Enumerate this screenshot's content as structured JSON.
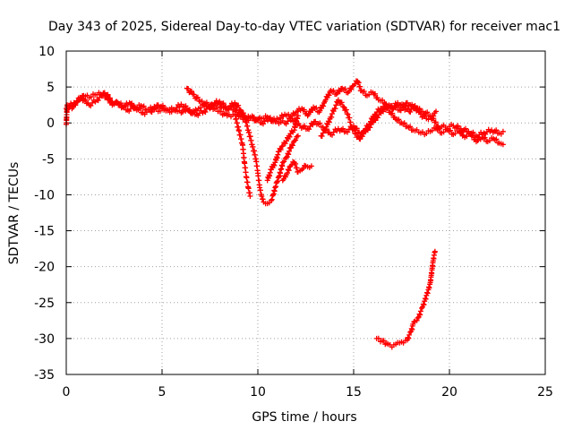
{
  "chart_data": {
    "type": "scatter",
    "title": "Day 343 of 2025, Sidereal Day-to-day VTEC variation (SDTVAR) for receiver mac1",
    "xlabel": "GPS time / hours",
    "ylabel": "SDTVAR / TECUs",
    "xlim": [
      0,
      25
    ],
    "ylim": [
      -35,
      10
    ],
    "xticks": [
      0,
      5,
      10,
      15,
      20,
      25
    ],
    "yticks": [
      10,
      5,
      0,
      -5,
      -10,
      -15,
      -20,
      -25,
      -30,
      -35
    ],
    "xtick_labels": [
      "0",
      "5",
      "10",
      "15",
      "20",
      "25"
    ],
    "ytick_labels": [
      "10",
      "5",
      "0",
      "-5",
      "-10",
      "-15",
      "-20",
      "-25",
      "-30",
      "-35"
    ],
    "grid": true,
    "marker": "+",
    "series": [
      {
        "name": "SDTVAR",
        "color": "#ff0000",
        "tracks": [
          [
            [
              0.0,
              -0.2
            ],
            [
              0.05,
              2.5
            ],
            [
              0.3,
              2.0
            ],
            [
              0.6,
              3.0
            ],
            [
              0.9,
              3.8
            ],
            [
              1.2,
              3.5
            ],
            [
              1.5,
              3.9
            ],
            [
              1.8,
              4.0
            ],
            [
              2.1,
              3.5
            ],
            [
              2.4,
              2.5
            ],
            [
              2.7,
              2.8
            ],
            [
              3.0,
              2.2
            ],
            [
              3.3,
              2.8
            ],
            [
              3.6,
              2.0
            ],
            [
              3.9,
              2.4
            ],
            [
              4.2,
              1.8
            ],
            [
              4.5,
              2.0
            ],
            [
              4.8,
              1.6
            ],
            [
              5.1,
              1.8
            ],
            [
              5.4,
              1.5
            ],
            [
              5.7,
              1.7
            ],
            [
              6.0,
              1.4
            ],
            [
              6.3,
              1.9
            ],
            [
              6.6,
              1.3
            ],
            [
              6.9,
              2.0
            ],
            [
              7.2,
              2.4
            ],
            [
              7.5,
              2.0
            ],
            [
              7.8,
              2.8
            ],
            [
              8.1,
              2.2
            ],
            [
              8.4,
              1.8
            ],
            [
              8.7,
              2.5
            ],
            [
              9.0,
              1.0
            ],
            [
              9.3,
              0.5
            ],
            [
              9.6,
              0.8
            ],
            [
              9.9,
              0.3
            ],
            [
              10.2,
              0.6
            ],
            [
              10.5,
              0.8
            ],
            [
              10.8,
              0.2
            ],
            [
              11.1,
              0.5
            ],
            [
              11.4,
              1.2
            ],
            [
              11.7,
              0.8
            ],
            [
              12.0,
              1.5
            ],
            [
              12.3,
              2.0
            ],
            [
              12.6,
              1.0
            ],
            [
              12.9,
              2.2
            ],
            [
              13.2,
              1.5
            ],
            [
              13.5,
              3.0
            ],
            [
              13.8,
              4.5
            ],
            [
              14.1,
              4.0
            ],
            [
              14.4,
              4.8
            ],
            [
              14.7,
              4.2
            ],
            [
              15.0,
              5.2
            ],
            [
              15.2,
              5.8
            ],
            [
              15.4,
              4.5
            ],
            [
              15.7,
              3.8
            ],
            [
              16.0,
              4.2
            ],
            [
              16.3,
              3.2
            ],
            [
              16.6,
              2.8
            ],
            [
              16.9,
              1.5
            ],
            [
              17.2,
              0.5
            ],
            [
              17.5,
              0.0
            ],
            [
              17.8,
              -0.5
            ],
            [
              18.1,
              -1.0
            ],
            [
              18.4,
              -1.3
            ],
            [
              18.7,
              -1.6
            ],
            [
              19.0,
              -1.2
            ],
            [
              19.3,
              -0.8
            ],
            [
              19.6,
              -1.4
            ],
            [
              19.9,
              -1.0
            ],
            [
              20.2,
              -1.6
            ],
            [
              20.5,
              -1.2
            ],
            [
              20.8,
              -2.0
            ],
            [
              21.1,
              -1.6
            ],
            [
              21.4,
              -2.6
            ],
            [
              21.7,
              -2.0
            ],
            [
              22.0,
              -2.6
            ],
            [
              22.3,
              -2.2
            ],
            [
              22.6,
              -2.8
            ],
            [
              22.8,
              -3.0
            ]
          ],
          [
            [
              0.0,
              2.0
            ],
            [
              0.4,
              2.8
            ],
            [
              0.8,
              3.5
            ],
            [
              1.2,
              2.5
            ],
            [
              1.6,
              3.2
            ],
            [
              2.0,
              4.2
            ],
            [
              2.4,
              3.0
            ],
            [
              2.8,
              2.5
            ],
            [
              3.2,
              1.8
            ],
            [
              3.6,
              2.2
            ],
            [
              4.0,
              1.4
            ],
            [
              4.4,
              1.6
            ],
            [
              4.8,
              2.5
            ],
            [
              5.2,
              2.0
            ],
            [
              5.6,
              1.8
            ],
            [
              6.0,
              2.6
            ],
            [
              6.4,
              1.8
            ],
            [
              6.8,
              1.2
            ],
            [
              7.2,
              1.6
            ],
            [
              7.6,
              2.6
            ],
            [
              8.0,
              3.0
            ],
            [
              8.4,
              2.0
            ],
            [
              8.8,
              2.8
            ],
            [
              9.1,
              1.8
            ],
            [
              9.4,
              0.5
            ],
            [
              9.8,
              0.8
            ],
            [
              10.2,
              0.0
            ],
            [
              10.6,
              0.6
            ],
            [
              11.0,
              0.2
            ],
            [
              11.4,
              0.0
            ],
            [
              11.8,
              0.6
            ],
            [
              12.2,
              -0.4
            ],
            [
              12.6,
              -0.8
            ],
            [
              13.0,
              0.2
            ],
            [
              13.4,
              -0.6
            ],
            [
              13.8,
              -1.6
            ],
            [
              14.2,
              -0.8
            ],
            [
              14.6,
              -1.2
            ],
            [
              15.0,
              -0.4
            ],
            [
              15.4,
              -1.8
            ],
            [
              15.8,
              -0.6
            ],
            [
              16.2,
              0.8
            ],
            [
              16.6,
              2.0
            ],
            [
              17.0,
              2.4
            ],
            [
              17.4,
              1.8
            ],
            [
              17.8,
              2.8
            ],
            [
              18.2,
              2.0
            ],
            [
              18.6,
              1.6
            ],
            [
              19.0,
              1.0
            ],
            [
              19.4,
              -0.4
            ],
            [
              19.8,
              -0.6
            ],
            [
              20.2,
              -0.4
            ],
            [
              20.6,
              -0.8
            ],
            [
              21.0,
              -1.2
            ],
            [
              21.4,
              -1.8
            ],
            [
              21.8,
              -1.4
            ],
            [
              22.2,
              -1.0
            ],
            [
              22.6,
              -1.4
            ],
            [
              22.8,
              -1.2
            ]
          ],
          [
            [
              6.3,
              4.8
            ],
            [
              6.6,
              4.0
            ],
            [
              7.0,
              3.0
            ],
            [
              7.5,
              2.4
            ],
            [
              8.0,
              1.6
            ],
            [
              8.4,
              1.0
            ],
            [
              8.8,
              1.2
            ],
            [
              9.0,
              -1.0
            ],
            [
              9.2,
              -3.0
            ],
            [
              9.3,
              -5.5
            ],
            [
              9.4,
              -7.5
            ],
            [
              9.5,
              -9.0
            ],
            [
              9.6,
              -10.2
            ]
          ],
          [
            [
              8.7,
              1.8
            ],
            [
              9.0,
              1.5
            ],
            [
              9.3,
              1.0
            ],
            [
              9.5,
              -1.0
            ],
            [
              9.7,
              -3.0
            ],
            [
              9.9,
              -5.0
            ],
            [
              10.0,
              -7.0
            ],
            [
              10.1,
              -9.0
            ],
            [
              10.2,
              -10.2
            ],
            [
              10.3,
              -11.0
            ],
            [
              10.5,
              -11.2
            ],
            [
              10.7,
              -10.8
            ],
            [
              10.8,
              -10.0
            ],
            [
              10.9,
              -9.0
            ],
            [
              11.0,
              -8.2
            ],
            [
              11.1,
              -7.5
            ],
            [
              11.2,
              -6.5
            ],
            [
              11.3,
              -5.5
            ],
            [
              11.5,
              -4.8
            ],
            [
              11.7,
              -3.5
            ],
            [
              11.9,
              -2.5
            ],
            [
              12.1,
              -1.8
            ]
          ],
          [
            [
              10.5,
              -8.0
            ],
            [
              10.7,
              -6.5
            ],
            [
              10.9,
              -5.5
            ],
            [
              11.1,
              -4.0
            ],
            [
              11.3,
              -3.2
            ],
            [
              11.5,
              -2.5
            ],
            [
              11.7,
              -1.5
            ],
            [
              11.9,
              -1.0
            ],
            [
              12.0,
              0.2
            ],
            [
              12.1,
              1.0
            ]
          ],
          [
            [
              11.3,
              -8.0
            ],
            [
              11.5,
              -7.2
            ],
            [
              11.7,
              -6.0
            ],
            [
              11.9,
              -5.5
            ],
            [
              12.1,
              -6.8
            ],
            [
              12.3,
              -6.5
            ],
            [
              12.5,
              -6.0
            ],
            [
              12.7,
              -6.2
            ],
            [
              12.8,
              -6.0
            ]
          ],
          [
            [
              13.3,
              -1.8
            ],
            [
              13.5,
              -1.0
            ],
            [
              13.8,
              0.8
            ],
            [
              14.0,
              2.0
            ],
            [
              14.2,
              3.2
            ],
            [
              14.5,
              2.2
            ],
            [
              14.7,
              1.2
            ],
            [
              14.9,
              -0.5
            ],
            [
              15.1,
              -1.5
            ],
            [
              15.3,
              -2.2
            ],
            [
              15.5,
              -1.2
            ],
            [
              15.8,
              -0.2
            ],
            [
              16.1,
              1.2
            ],
            [
              16.4,
              2.0
            ],
            [
              16.7,
              2.6
            ],
            [
              17.0,
              2.0
            ],
            [
              17.3,
              2.8
            ],
            [
              17.6,
              2.2
            ],
            [
              17.9,
              1.6
            ],
            [
              18.2,
              2.4
            ],
            [
              18.5,
              1.2
            ],
            [
              18.8,
              0.6
            ],
            [
              19.1,
              1.0
            ],
            [
              19.3,
              1.6
            ]
          ],
          [
            [
              16.2,
              -30.0
            ],
            [
              16.5,
              -30.3
            ],
            [
              16.8,
              -30.8
            ],
            [
              17.0,
              -31.2
            ],
            [
              17.2,
              -30.8
            ],
            [
              17.4,
              -30.6
            ],
            [
              17.6,
              -30.6
            ],
            [
              17.8,
              -30.2
            ],
            [
              17.9,
              -29.5
            ],
            [
              18.0,
              -29.0
            ],
            [
              18.1,
              -28.0
            ],
            [
              18.2,
              -27.6
            ],
            [
              18.3,
              -27.5
            ],
            [
              18.4,
              -27.0
            ],
            [
              18.5,
              -26.2
            ],
            [
              18.6,
              -25.6
            ],
            [
              18.7,
              -24.8
            ],
            [
              18.8,
              -24.0
            ],
            [
              18.9,
              -23.2
            ],
            [
              19.0,
              -22.2
            ],
            [
              19.05,
              -21.2
            ],
            [
              19.1,
              -20.2
            ],
            [
              19.15,
              -19.2
            ],
            [
              19.2,
              -18.4
            ],
            [
              19.25,
              -17.9
            ]
          ]
        ]
      }
    ]
  }
}
